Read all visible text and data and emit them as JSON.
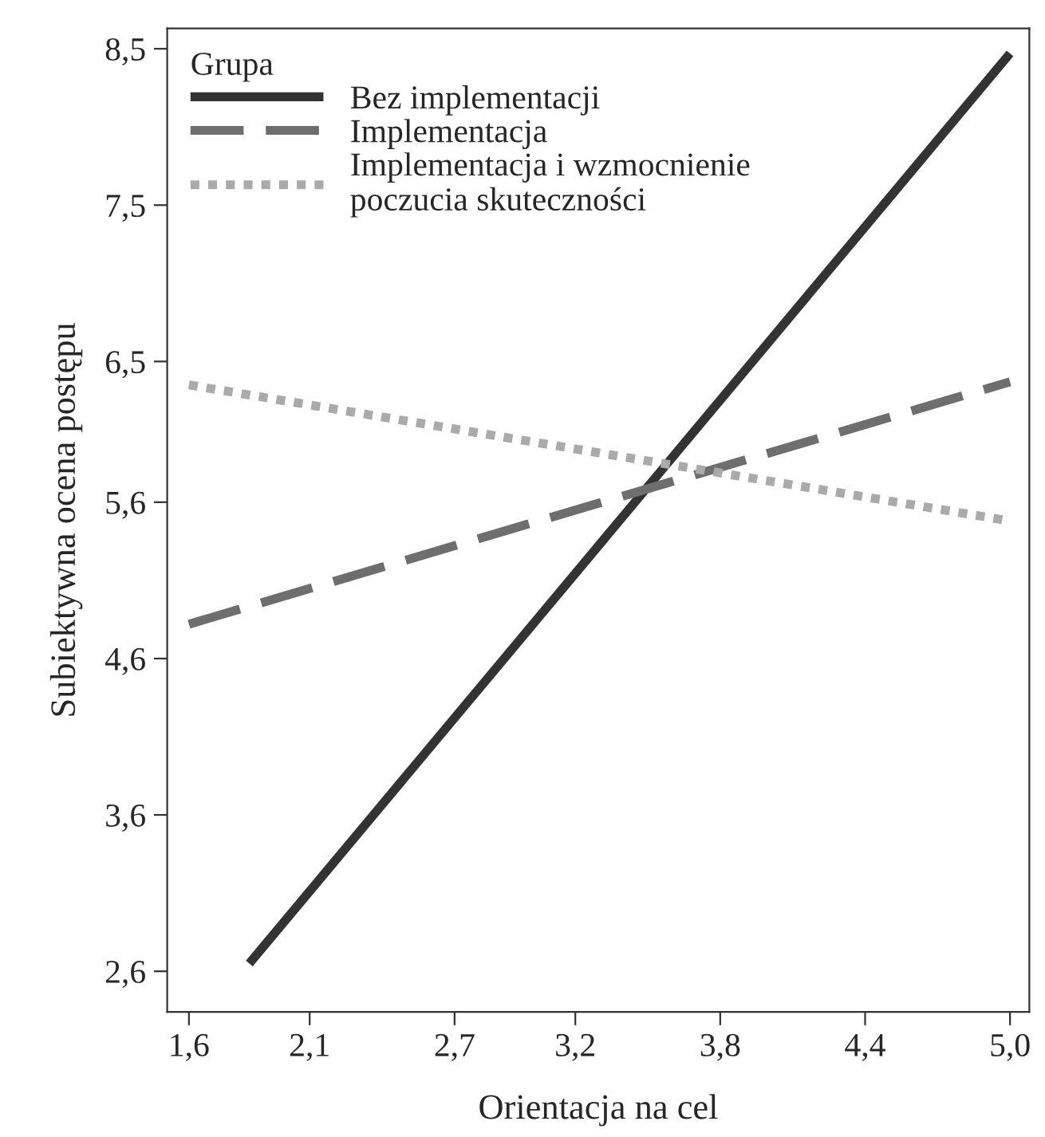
{
  "chart_data": {
    "type": "line",
    "xlabel": "Orientacja na cel",
    "ylabel": "Subiektywna ocena postępu",
    "legend_title": "Grupa",
    "legend": "top left",
    "grid": false,
    "marker": "none",
    "xlim": [
      1.51,
      5.08
    ],
    "ylim": [
      2.34,
      8.63
    ],
    "xticks": [
      {
        "value": 1.6,
        "label": "1,6"
      },
      {
        "value": 2.1,
        "label": "2,1"
      },
      {
        "value": 2.7,
        "label": "2,7"
      },
      {
        "value": 3.2,
        "label": "3,2"
      },
      {
        "value": 3.8,
        "label": "3,8"
      },
      {
        "value": 4.4,
        "label": "4,4"
      },
      {
        "value": 5.0,
        "label": "5,0"
      }
    ],
    "yticks": [
      {
        "value": 2.6,
        "label": "2,6"
      },
      {
        "value": 3.6,
        "label": "3,6"
      },
      {
        "value": 4.6,
        "label": "4,6"
      },
      {
        "value": 5.6,
        "label": "5,6"
      },
      {
        "value": 6.5,
        "label": "6,5"
      },
      {
        "value": 7.5,
        "label": "7,5"
      },
      {
        "value": 8.5,
        "label": "8,5"
      }
    ],
    "series": [
      {
        "name": "Bez implementacji",
        "color": "#333333",
        "line_style": "solid",
        "x": [
          1.85,
          5.0
        ],
        "values": [
          2.65,
          8.47
        ]
      },
      {
        "name": "Implementacja",
        "color": "#6e6e6e",
        "line_style": "dashed",
        "x": [
          1.6,
          5.0
        ],
        "values": [
          4.82,
          6.37
        ]
      },
      {
        "name": "Implementacja i wzmocnienie\npoczucia skuteczności",
        "color": "#aaaaaa",
        "line_style": "dotted",
        "x": [
          1.6,
          5.0
        ],
        "values": [
          6.35,
          5.48
        ]
      }
    ]
  }
}
